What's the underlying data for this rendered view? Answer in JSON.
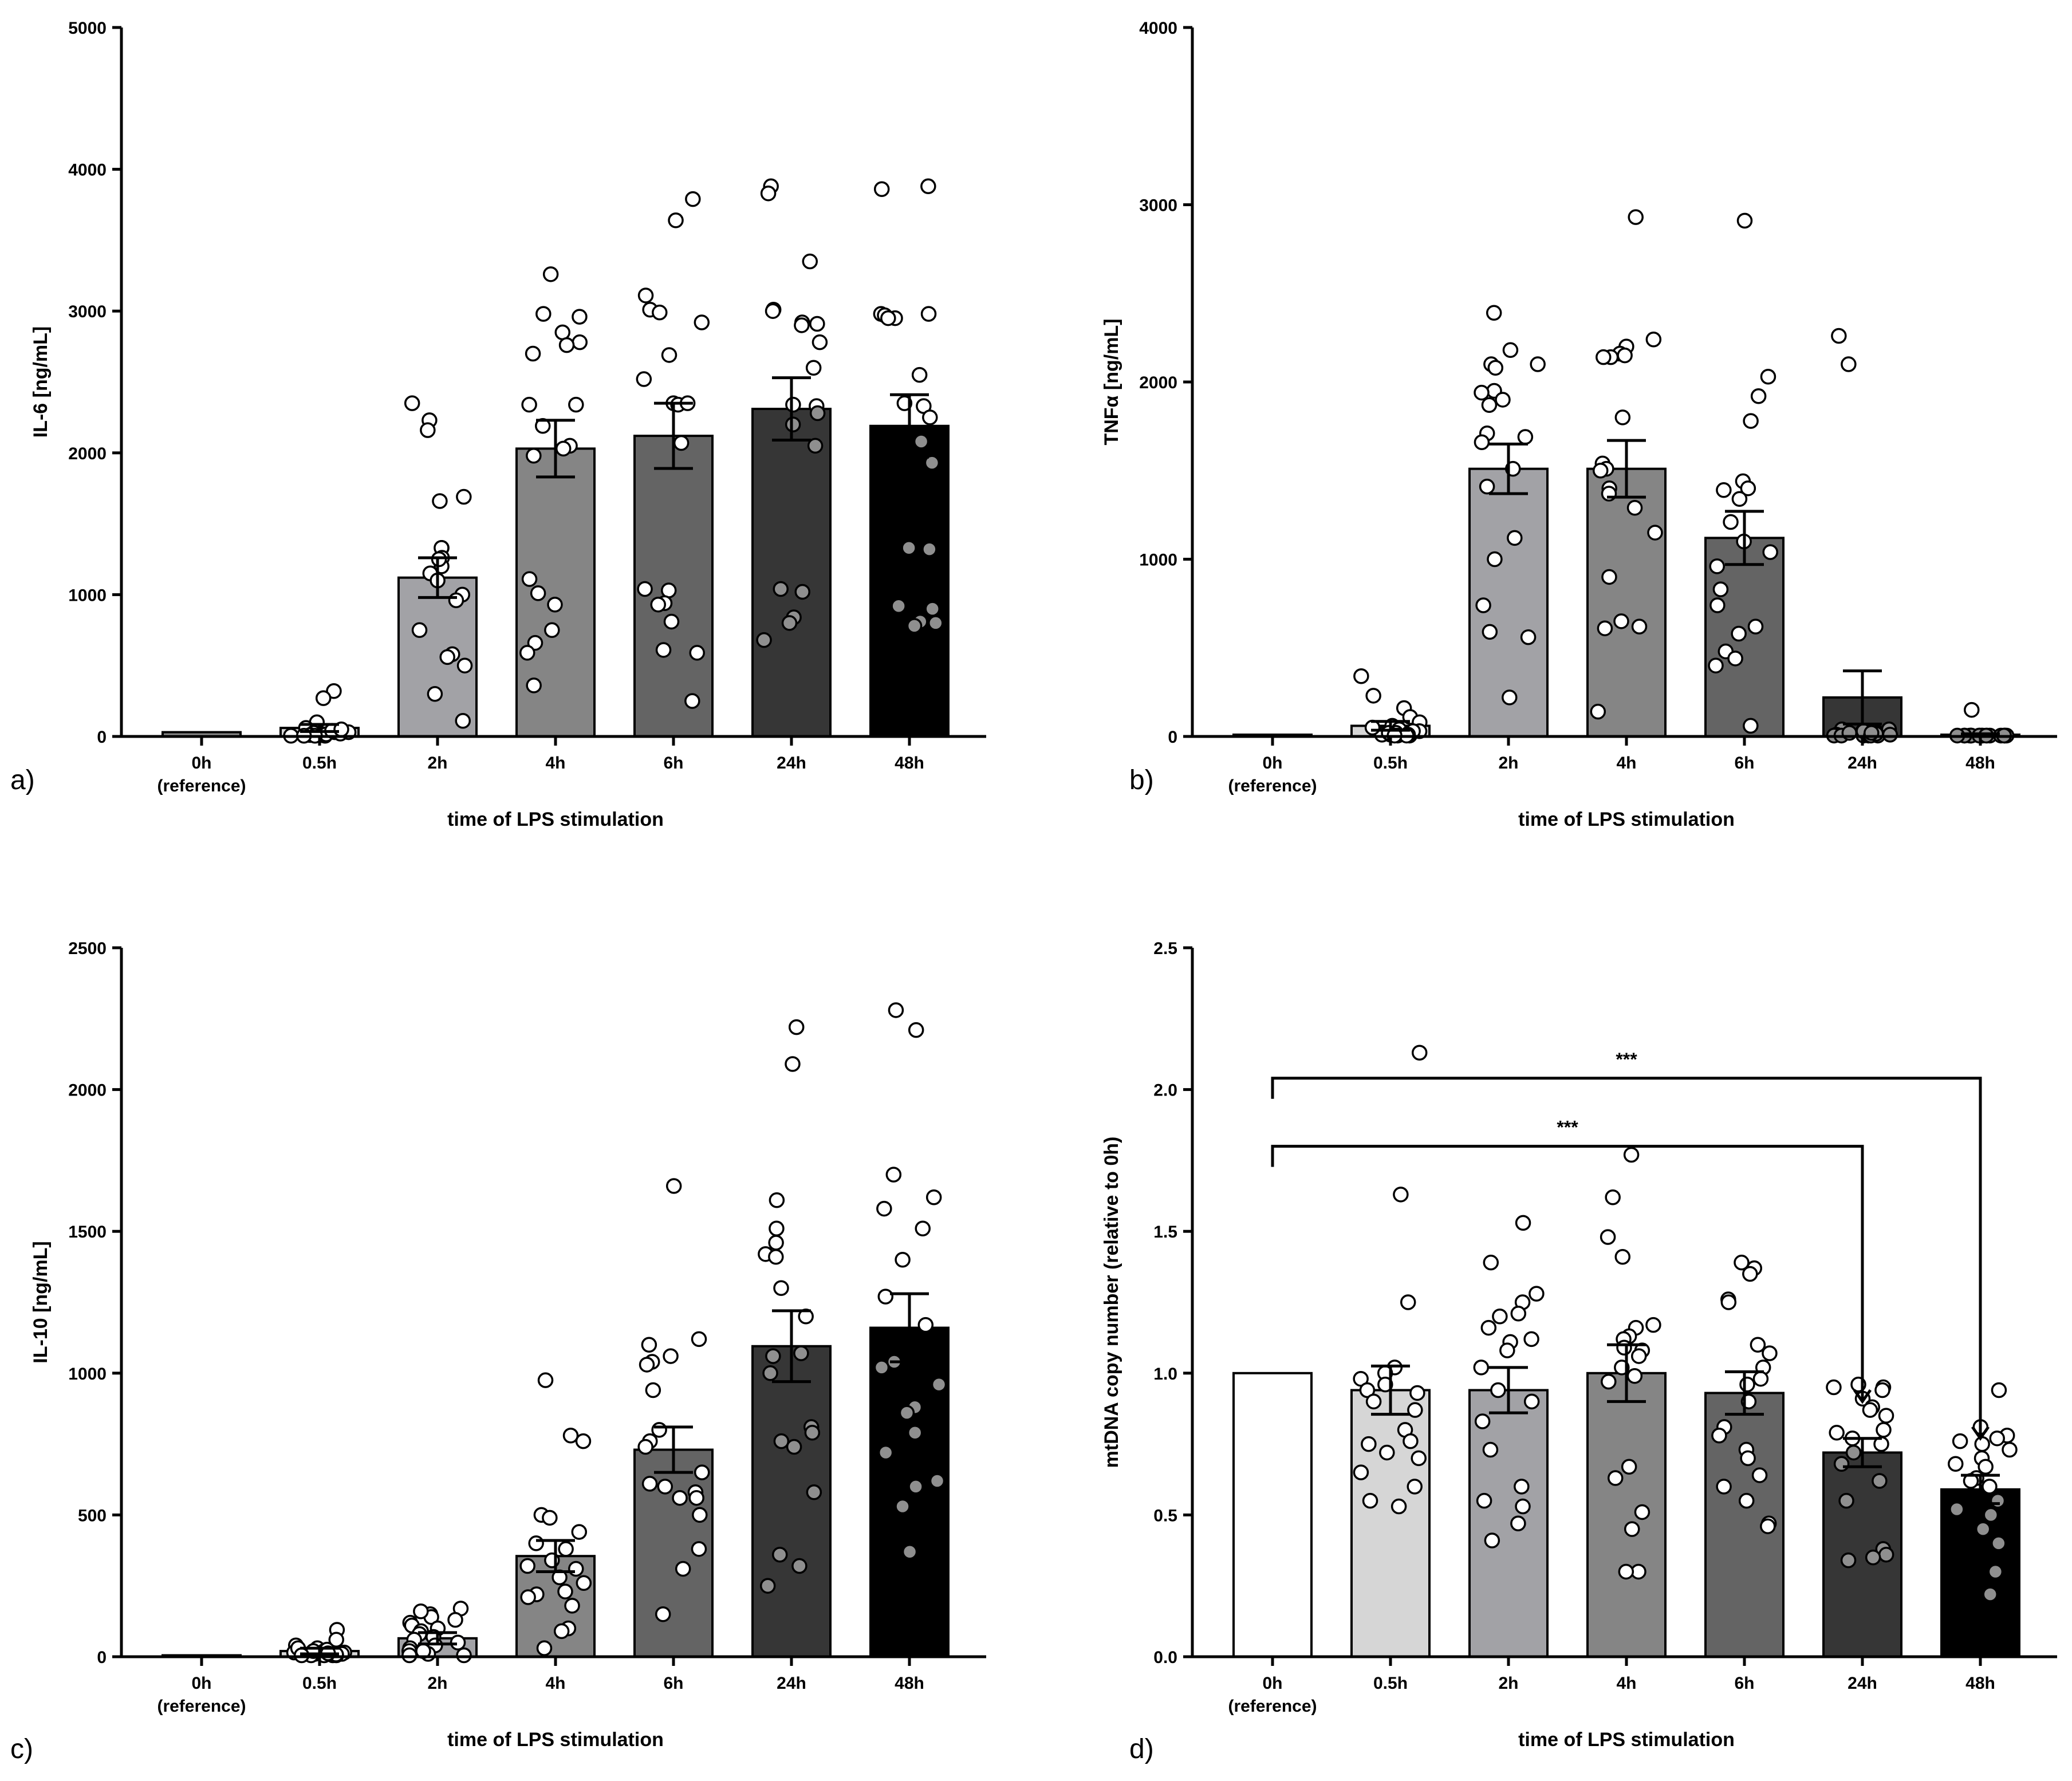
{
  "figure": {
    "background": "#ffffff",
    "axis_color": "#000000"
  },
  "chart_data": [
    {
      "type": "bar",
      "panel_label": "a)",
      "ylabel": "IL-6 [ng/mL]",
      "xlabel": "time of LPS stimulation",
      "categories": [
        "0h",
        "0.5h",
        "2h",
        "4h",
        "6h",
        "24h",
        "48h"
      ],
      "category_sublabels": [
        "(reference)",
        "",
        "",
        "",
        "",
        "",
        ""
      ],
      "ylim": [
        0,
        5000
      ],
      "yticks": [
        0,
        1000,
        2000,
        3000,
        4000,
        5000
      ],
      "bar_colors": [
        "#8c8c8c",
        "#d6d6d6",
        "#a2a2a6",
        "#858585",
        "#646464",
        "#363636",
        "#000000"
      ],
      "values": [
        30,
        60,
        1120,
        2030,
        2120,
        2310,
        2190
      ],
      "errors": [
        0,
        25,
        140,
        200,
        230,
        220,
        220
      ],
      "points": [
        [],
        [
          320,
          270,
          100,
          60,
          40,
          30,
          20,
          10,
          10,
          5,
          5,
          15,
          25,
          20,
          10,
          5,
          5,
          30,
          40,
          50
        ],
        [
          2350,
          2230,
          2160,
          1690,
          1660,
          1330,
          1330,
          1260,
          1200,
          1150,
          1000,
          960,
          750,
          580,
          560,
          500,
          300,
          110,
          1100,
          1250
        ],
        [
          3260,
          2980,
          2960,
          2850,
          2780,
          2760,
          2700,
          2340,
          2340,
          2190,
          2050,
          2030,
          1980,
          1110,
          1010,
          930,
          750,
          660,
          590,
          360
        ],
        [
          3790,
          3640,
          3110,
          3010,
          2990,
          2920,
          2690,
          2520,
          2350,
          2340,
          2350,
          2070,
          1040,
          1030,
          940,
          930,
          810,
          610,
          590,
          250
        ],
        [
          3880,
          3830,
          3350,
          3010,
          3000,
          2920,
          2910,
          2900,
          2780,
          2600,
          2340,
          2330,
          2200,
          1040,
          1020,
          840,
          800,
          680,
          2050,
          2280
        ],
        [
          3880,
          3860,
          2980,
          2980,
          2970,
          2950,
          2950,
          2550,
          2350,
          2330,
          2250,
          2080,
          1930,
          1330,
          1320,
          920,
          900,
          810,
          800,
          780
        ]
      ]
    },
    {
      "type": "bar",
      "panel_label": "b)",
      "ylabel": "TNFα [ng/mL]",
      "xlabel": "time of LPS stimulation",
      "categories": [
        "0h",
        "0.5h",
        "2h",
        "4h",
        "6h",
        "24h",
        "48h"
      ],
      "category_sublabels": [
        "(reference)",
        "",
        "",
        "",
        "",
        "",
        ""
      ],
      "ylim": [
        0,
        4000
      ],
      "yticks": [
        0,
        1000,
        2000,
        3000,
        4000
      ],
      "bar_colors": [
        "#8c8c8c",
        "#d6d6d6",
        "#a2a2a6",
        "#858585",
        "#646464",
        "#363636",
        "#000000"
      ],
      "values": [
        10,
        60,
        1510,
        1510,
        1120,
        220,
        10
      ],
      "errors": [
        0,
        25,
        140,
        160,
        150,
        150,
        5
      ],
      "points": [
        [],
        [
          340,
          230,
          160,
          110,
          80,
          60,
          40,
          30,
          20,
          10,
          10,
          5,
          5,
          15,
          30,
          20,
          10,
          5,
          5,
          50
        ],
        [
          2390,
          2180,
          2100,
          2100,
          2080,
          1950,
          1940,
          1900,
          1870,
          1710,
          1690,
          1660,
          1510,
          1410,
          1120,
          1000,
          740,
          590,
          560,
          220
        ],
        [
          2930,
          2240,
          2200,
          2160,
          2150,
          2140,
          2140,
          1800,
          1540,
          1510,
          1500,
          1400,
          1370,
          1290,
          1150,
          900,
          650,
          620,
          610,
          140
        ],
        [
          2910,
          2030,
          1920,
          1780,
          1440,
          1400,
          1390,
          1340,
          1210,
          1100,
          1040,
          960,
          830,
          740,
          620,
          580,
          480,
          440,
          400,
          60
        ],
        [
          2260,
          2100,
          40,
          30,
          20,
          10,
          10,
          5,
          5,
          5,
          5,
          10,
          20,
          30,
          40,
          5,
          5,
          10,
          15,
          20
        ],
        [
          150,
          5,
          5,
          5,
          5,
          5,
          5,
          5,
          5,
          5,
          5,
          5,
          5,
          5,
          5,
          5,
          5,
          5,
          5,
          5
        ]
      ]
    },
    {
      "type": "bar",
      "panel_label": "c)",
      "ylabel": "IL-10 [ng/mL]",
      "xlabel": "time of LPS stimulation",
      "categories": [
        "0h",
        "0.5h",
        "2h",
        "4h",
        "6h",
        "24h",
        "48h"
      ],
      "category_sublabels": [
        "(reference)",
        "",
        "",
        "",
        "",
        "",
        ""
      ],
      "ylim": [
        0,
        2500
      ],
      "yticks": [
        0,
        500,
        1000,
        1500,
        2000,
        2500
      ],
      "bar_colors": [
        "#8c8c8c",
        "#d6d6d6",
        "#a2a2a6",
        "#858585",
        "#646464",
        "#363636",
        "#000000"
      ],
      "values": [
        5,
        20,
        65,
        355,
        730,
        1095,
        1160
      ],
      "errors": [
        0,
        10,
        20,
        55,
        80,
        125,
        120
      ],
      "points": [
        [],
        [
          95,
          60,
          40,
          30,
          20,
          15,
          10,
          10,
          5,
          5,
          5,
          15,
          20,
          25,
          30,
          10,
          5,
          5,
          8,
          12
        ],
        [
          170,
          150,
          140,
          120,
          110,
          100,
          90,
          80,
          70,
          60,
          50,
          40,
          30,
          20,
          10,
          5,
          5,
          130,
          160,
          20
        ],
        [
          975,
          780,
          760,
          500,
          490,
          440,
          400,
          380,
          340,
          320,
          310,
          280,
          260,
          230,
          220,
          210,
          180,
          100,
          90,
          30
        ],
        [
          1660,
          1120,
          1100,
          1060,
          1040,
          1030,
          940,
          800,
          760,
          740,
          650,
          610,
          600,
          580,
          560,
          500,
          380,
          310,
          150,
          560
        ],
        [
          2220,
          2090,
          1610,
          1510,
          1460,
          1420,
          1410,
          1300,
          1200,
          1070,
          1060,
          1000,
          810,
          790,
          760,
          740,
          580,
          360,
          320,
          250
        ],
        [
          2280,
          2210,
          1700,
          1620,
          1580,
          1510,
          1400,
          1270,
          1170,
          1040,
          1020,
          960,
          880,
          860,
          790,
          720,
          620,
          600,
          530,
          370
        ]
      ]
    },
    {
      "type": "bar",
      "panel_label": "d)",
      "ylabel": "mtDNA copy number (relative to 0h)",
      "xlabel": "time of LPS stimulation",
      "categories": [
        "0h",
        "0.5h",
        "2h",
        "4h",
        "6h",
        "24h",
        "48h"
      ],
      "category_sublabels": [
        "(reference)",
        "",
        "",
        "",
        "",
        "",
        ""
      ],
      "ylim": [
        0,
        2.5
      ],
      "yticks": [
        0.0,
        0.5,
        1.0,
        1.5,
        2.0,
        2.5
      ],
      "ytick_labels": [
        "0.0",
        "0.5",
        "1.0",
        "1.5",
        "2.0",
        "2.5"
      ],
      "bar_colors": [
        "#ffffff",
        "#d6d6d6",
        "#a2a2a6",
        "#858585",
        "#646464",
        "#363636",
        "#000000"
      ],
      "values": [
        1.0,
        0.94,
        0.94,
        1.0,
        0.93,
        0.72,
        0.59
      ],
      "errors": [
        0,
        0.085,
        0.08,
        0.1,
        0.075,
        0.05,
        0.05
      ],
      "points": [
        [],
        [
          2.13,
          1.63,
          1.25,
          1.02,
          1.0,
          0.98,
          0.96,
          0.94,
          0.93,
          0.9,
          0.87,
          0.8,
          0.76,
          0.75,
          0.72,
          0.7,
          0.65,
          0.6,
          0.55,
          0.53
        ],
        [
          1.53,
          1.39,
          1.28,
          1.25,
          1.21,
          1.2,
          1.16,
          1.12,
          1.11,
          1.08,
          1.02,
          0.94,
          0.9,
          0.83,
          0.73,
          0.6,
          0.55,
          0.53,
          0.47,
          0.41
        ],
        [
          1.77,
          1.62,
          1.48,
          1.41,
          1.17,
          1.16,
          1.13,
          1.12,
          1.09,
          1.08,
          1.06,
          1.02,
          0.99,
          0.97,
          0.67,
          0.63,
          0.51,
          0.45,
          0.3,
          0.3
        ],
        [
          1.39,
          1.37,
          1.35,
          1.26,
          1.25,
          1.1,
          1.07,
          1.02,
          0.98,
          0.96,
          0.9,
          0.81,
          0.78,
          0.73,
          0.7,
          0.64,
          0.6,
          0.55,
          0.47,
          0.46
        ],
        [
          0.96,
          0.95,
          0.95,
          0.94,
          0.91,
          0.88,
          0.87,
          0.85,
          0.8,
          0.79,
          0.77,
          0.75,
          0.72,
          0.68,
          0.62,
          0.55,
          0.38,
          0.36,
          0.35,
          0.34
        ],
        [
          0.94,
          0.81,
          0.78,
          0.77,
          0.76,
          0.75,
          0.73,
          0.7,
          0.68,
          0.67,
          0.63,
          0.62,
          0.6,
          0.55,
          0.52,
          0.5,
          0.45,
          0.4,
          0.3,
          0.22
        ]
      ],
      "annotations": [
        {
          "text": "***",
          "from": "0h",
          "to": "48h",
          "y": 2.04
        },
        {
          "text": "***",
          "from": "0h",
          "to": "24h",
          "y": 1.8
        }
      ]
    }
  ]
}
